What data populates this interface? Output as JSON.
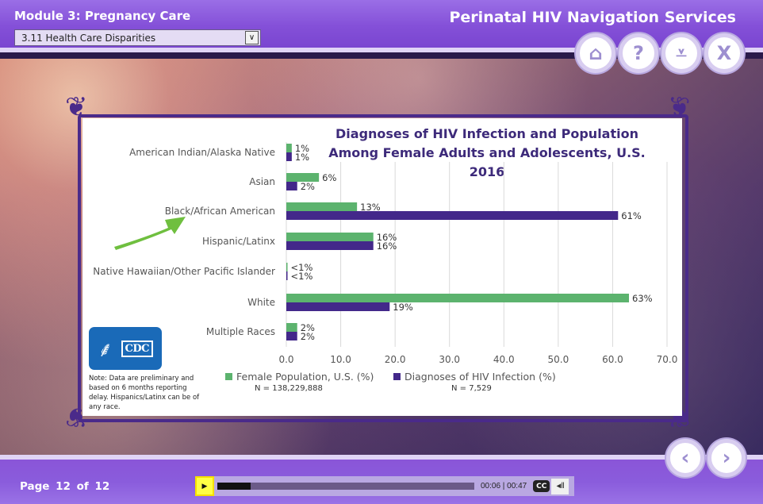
{
  "header": {
    "module_title": "Module 3: Pregnancy Care",
    "app_title": "Perinatal HIV Navigation Services",
    "section_select": {
      "selected": "3.11 Health Care Disparities"
    },
    "nav_buttons": [
      {
        "name": "home",
        "icon": "home-icon",
        "glyph": "⌂"
      },
      {
        "name": "help",
        "icon": "question-icon",
        "glyph": "?"
      },
      {
        "name": "download",
        "icon": "download-icon",
        "glyph": "⩡"
      },
      {
        "name": "exit",
        "icon": "close-icon",
        "glyph": "X"
      }
    ]
  },
  "chart_data": {
    "type": "bar",
    "orientation": "horizontal",
    "title": "Diagnoses of HIV Infection and Population Among Female Adults and Adolescents, U.S. 2016",
    "title_lines": [
      "Diagnoses of HIV Infection and Population",
      "Among Female Adults and Adolescents, U.S. 2016"
    ],
    "categories": [
      "American Indian/Alaska Native",
      "Asian",
      "Black/African American",
      "Hispanic/Latinx",
      "Native Hawaiian/Other Pacific Islander",
      "White",
      "Multiple Races"
    ],
    "series": [
      {
        "name": "Female Population, U.S. (%)",
        "n_label": "N = 138,229,888",
        "color": "#5cb36e",
        "values": [
          1,
          6,
          13,
          16,
          0.2,
          63,
          2
        ],
        "labels": [
          "1%",
          "6%",
          "13%",
          "16%",
          "<1%",
          "63%",
          "2%"
        ]
      },
      {
        "name": "Diagnoses of HIV Infection (%)",
        "n_label": "N = 7,529",
        "color": "#43288a",
        "values": [
          1,
          2,
          61,
          16,
          0.1,
          19,
          2
        ],
        "labels": [
          "1%",
          "2%",
          "61%",
          "16%",
          "<1%",
          "19%",
          "2%"
        ]
      }
    ],
    "xlim": [
      0,
      70
    ],
    "xticks": [
      "0.0",
      "10.0",
      "20.0",
      "30.0",
      "40.0",
      "50.0",
      "60.0",
      "70.0"
    ],
    "grid": true,
    "legend": "bottom",
    "annotation": "green arrow pointing to Black/African American"
  },
  "note": "Note: Data are preliminary and based on 6 months reporting delay. Hispanics/Latinx can be of any race.",
  "logo": {
    "text": "CDC"
  },
  "footer": {
    "page_label": "Page 12 of 12",
    "player": {
      "progress": 0.13,
      "time": "00:06 | 00:47",
      "cc_label": "CC",
      "volume_glyph": "◂ıll"
    },
    "prev_glyph": "‹",
    "next_glyph": "›"
  }
}
